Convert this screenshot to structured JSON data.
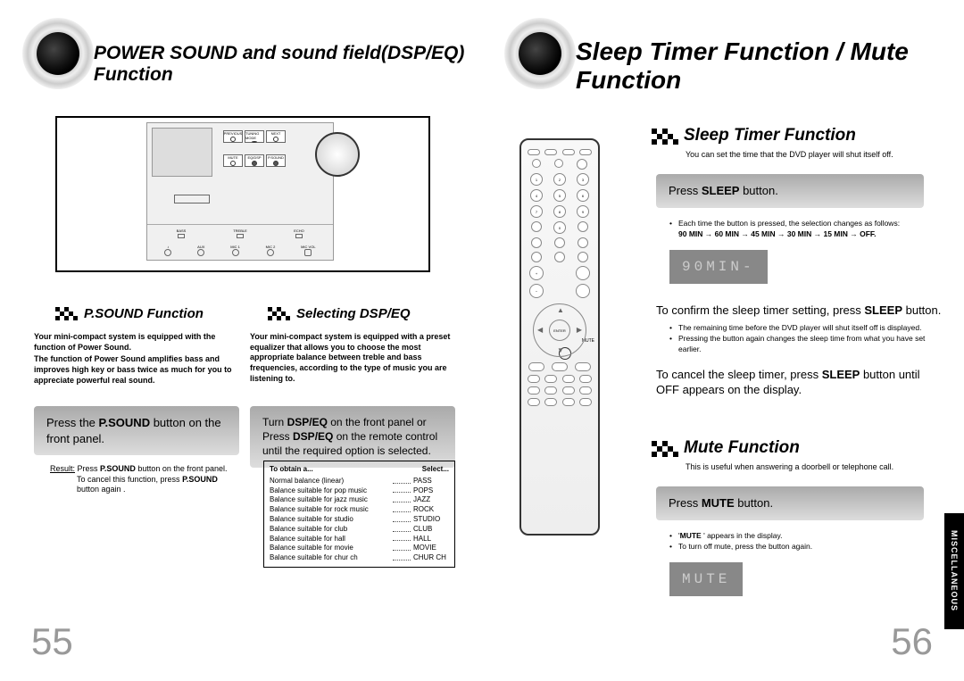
{
  "leftPage": {
    "title": "POWER SOUND and  sound field(DSP/EQ)  Function",
    "pageNum": "55",
    "psound": {
      "title": "P.SOUND Function",
      "intro1": "Your mini-compact system is equipped with the function of Power Sound.",
      "intro2": "The function of Power Sound amplifies bass and improves high key or bass twice as much for you to appreciate powerful real sound.",
      "grayBox": "Press the P.SOUND button on the front panel.",
      "resultPrefix": "Result:",
      "result": "Press P.SOUND button on the front panel. To cancel this function, press P.SOUND button again ."
    },
    "dspeq": {
      "title": "Selecting DSP/EQ",
      "intro": "Your mini-compact system is equipped with a preset equalizer that allows you to choose the most appropriate balance between treble and bass frequencies, according to the type of music you are listening to.",
      "grayBox": "Turn DSP/EQ on the front panel or  Press DSP/EQ on the remote control until the required option is selected.",
      "tableHdr1": "To obtain a...",
      "tableHdr2": "Select...",
      "rows": [
        {
          "l": "Normal balance (linear)",
          "v": "PASS"
        },
        {
          "l": "Balance suitable for pop music",
          "v": "POPS"
        },
        {
          "l": "Balance suitable for jazz  music",
          "v": "JAZZ"
        },
        {
          "l": "Balance suitable for rock music",
          "v": "ROCK"
        },
        {
          "l": "Balance suitable for studio",
          "v": "STUDIO"
        },
        {
          "l": "Balance suitable for club",
          "v": "CLUB"
        },
        {
          "l": "Balance suitable for hall",
          "v": "HALL"
        },
        {
          "l": "Balance suitable for movie",
          "v": "MOVIE"
        },
        {
          "l": "Balance suitable for chur ch",
          "v": "CHUR CH"
        }
      ]
    },
    "deviceBtns": {
      "top": [
        "PREVIOUS",
        "TUNING MODE",
        "NEXT"
      ],
      "row2": [
        "MUTE",
        "EQ/DSP",
        "P.SOUND"
      ],
      "bottom": [
        "BASS",
        "TREBLE",
        "ECHO"
      ],
      "jacks": [
        "AUX",
        "MIC 1",
        "MIC 2",
        "MIC VOL"
      ]
    }
  },
  "rightPage": {
    "title": "Sleep Timer Function / Mute Function",
    "pageNum": "56",
    "sideTab": "MISCELLANEOUS",
    "sleep": {
      "title": "Sleep Timer Function",
      "sub": "You can set the time that the DVD player will shut itself off.",
      "grayBox": "Press SLEEP button.",
      "bullet1": "Each time the button is pressed, the selection changes as follows:",
      "seq": "90 MIN  → 60 MIN  → 45 MIN  → 30 MIN  → 15 MIN  → OFF.",
      "lcd": "90MIN-",
      "confirm": "To confirm the sleep timer setting, press SLEEP button.",
      "confirmBullets": [
        "The remaining time before the DVD player will shut itself off is displayed.",
        "Pressing the button again changes the sleep time from what you have set earlier."
      ],
      "cancel": "To cancel the sleep timer, press SLEEP button until OFF appears on the display."
    },
    "mute": {
      "title": "Mute Function",
      "sub": "This is useful when answering a doorbell or telephone call.",
      "grayBox": "Press MUTE button.",
      "bullets": [
        "'MUTE ' appears in the display.",
        "To turn off mute, press the button again."
      ],
      "lcd": "MUTE",
      "label": "MUTE"
    }
  },
  "style": {
    "checkerColor": "#000",
    "grayBoxFrom": "#aaa",
    "grayBoxTo": "#ddd",
    "lcdBg": "#888",
    "lcdFg": "#d0d0d0",
    "pageNumColor": "#999"
  }
}
